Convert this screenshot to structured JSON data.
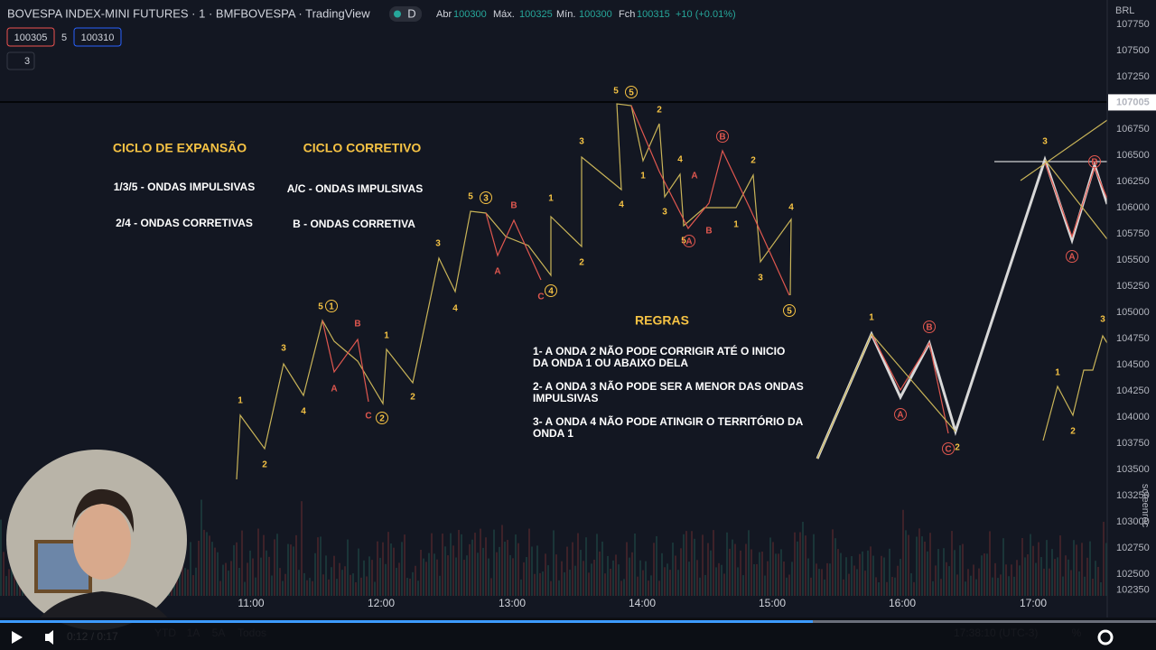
{
  "header": {
    "symbol": "BOVESPA INDEX-MINI FUTURES · 1 · BMFBOVESPA · TradingView",
    "badge": "D",
    "open_label": "Abr",
    "open": "100300",
    "high_label": "Máx.",
    "high": "100325",
    "low_label": "Mín.",
    "low": "100300",
    "close_label": "Fch",
    "close": "100315",
    "change": "+10 (+0.01%)",
    "bid": "100305",
    "spread": "5",
    "ask": "100310",
    "indicators": "3",
    "currency": "BRL"
  },
  "price_axis": {
    "ticks": [
      107750,
      107500,
      107250,
      106750,
      106500,
      106250,
      106000,
      105750,
      105500,
      105250,
      105000,
      104750,
      104500,
      104250,
      104000,
      103750,
      103500,
      103250,
      103000,
      102750,
      102500,
      102350
    ],
    "current": 107005
  },
  "time_axis": [
    "11:00",
    "12:00",
    "13:00",
    "14:00",
    "15:00",
    "16:00",
    "17:00"
  ],
  "annotations": {
    "expansion_title": "CICLO DE EXPANSÃO",
    "expansion_1": "1/3/5 - ONDAS IMPULSIVAS",
    "expansion_2": "2/4 - ONDAS CORRETIVAS",
    "corrective_title": "CICLO CORRETIVO",
    "corrective_1": "A/C - ONDAS IMPULSIVAS",
    "corrective_2": "B - ONDAS CORRETIVA",
    "rules_title": "REGRAS",
    "rules": [
      [
        "1- A ONDA 2 NÃO PODE CORRIGIR ATÉ O INICIO",
        "DA ONDA 1 OU ABAIXO DELA"
      ],
      [
        "2- A ONDA 3 NÃO PODE SER A MENOR DAS ONDAS",
        "IMPULSIVAS"
      ],
      [
        "3- A ONDA 4 NÃO PODE ATINGIR O TERRITÓRIO DA",
        "ONDA 1"
      ]
    ]
  },
  "wave_labels": [
    "1",
    "2",
    "3",
    "4",
    "5",
    "1",
    "B",
    "A",
    "C",
    "2",
    "1",
    "2",
    "3",
    "4",
    "5",
    "3",
    "B",
    "A",
    "C",
    "1",
    "2",
    "4",
    "3",
    "4",
    "5",
    "5",
    "2",
    "1",
    "3",
    "4",
    "5",
    "A",
    "B",
    "B",
    "A",
    "2",
    "1",
    "3",
    "4",
    "5",
    "1",
    "B",
    "A",
    "C",
    "2",
    "3",
    "A",
    "B",
    "1",
    "2",
    "3"
  ],
  "player": {
    "time": "0:12 / 0:17",
    "ranges": [
      "YTD",
      "1A",
      "5A",
      "Todos"
    ],
    "clock": "17:38:10 (UTC-3)",
    "percent": "%",
    "watermark": "screenrec"
  }
}
